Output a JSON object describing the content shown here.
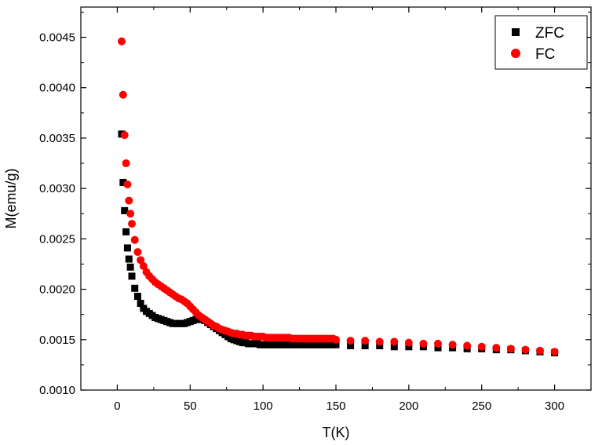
{
  "chart_data": {
    "type": "scatter",
    "title": "",
    "xlabel": "T(K)",
    "ylabel": "M(emu/g)",
    "xlim": [
      -25,
      325
    ],
    "ylim": [
      0.001,
      0.0048
    ],
    "xticks": [
      0,
      50,
      100,
      150,
      200,
      250,
      300
    ],
    "xtick_labels": [
      "0",
      "50",
      "100",
      "150",
      "200",
      "250",
      "300"
    ],
    "yticks": [
      0.001,
      0.0015,
      0.002,
      0.0025,
      0.003,
      0.0035,
      0.004,
      0.0045
    ],
    "ytick_labels": [
      "0.0010",
      "0.0015",
      "0.0020",
      "0.0025",
      "0.0030",
      "0.0035",
      "0.0040",
      "0.0045"
    ],
    "legend_position": "top-right",
    "series": [
      {
        "name": "ZFC",
        "marker": "square",
        "color": "#000000",
        "x": [
          3,
          4,
          5,
          6,
          7,
          8,
          9,
          10,
          12,
          14,
          16,
          18,
          20,
          22,
          24,
          26,
          28,
          30,
          32,
          34,
          36,
          38,
          40,
          42,
          44,
          46,
          48,
          50,
          52,
          54,
          56,
          58,
          60,
          62,
          64,
          66,
          68,
          70,
          72,
          74,
          76,
          78,
          80,
          82,
          84,
          86,
          88,
          90,
          92,
          94,
          96,
          98,
          100,
          102,
          104,
          106,
          108,
          110,
          112,
          114,
          116,
          118,
          120,
          122,
          124,
          126,
          128,
          130,
          132,
          134,
          136,
          138,
          140,
          142,
          144,
          146,
          148,
          150,
          160,
          170,
          180,
          190,
          200,
          210,
          220,
          230,
          240,
          250,
          260,
          270,
          280,
          290,
          300
        ],
        "y": [
          0.00354,
          0.00306,
          0.00278,
          0.00257,
          0.00241,
          0.0023,
          0.00222,
          0.00213,
          0.00201,
          0.00193,
          0.00186,
          0.00181,
          0.00178,
          0.00176,
          0.00174,
          0.00172,
          0.00171,
          0.0017,
          0.00169,
          0.00168,
          0.00167,
          0.00166,
          0.00166,
          0.00166,
          0.00166,
          0.00166,
          0.00167,
          0.00168,
          0.00169,
          0.0017,
          0.0017,
          0.0017,
          0.00169,
          0.00167,
          0.00165,
          0.00163,
          0.00161,
          0.00159,
          0.00157,
          0.00155,
          0.00153,
          0.00151,
          0.0015,
          0.00149,
          0.00148,
          0.00147,
          0.00147,
          0.00146,
          0.00146,
          0.00146,
          0.00146,
          0.00145,
          0.00145,
          0.00145,
          0.00145,
          0.00145,
          0.00145,
          0.00145,
          0.00145,
          0.00145,
          0.00145,
          0.00145,
          0.00145,
          0.00145,
          0.00145,
          0.00145,
          0.00145,
          0.00145,
          0.00145,
          0.00145,
          0.00145,
          0.00145,
          0.00145,
          0.00145,
          0.00145,
          0.00145,
          0.00145,
          0.00145,
          0.00144,
          0.00144,
          0.00144,
          0.00143,
          0.00143,
          0.00143,
          0.00142,
          0.00142,
          0.00141,
          0.00141,
          0.0014,
          0.0014,
          0.00139,
          0.00138,
          0.00137
        ]
      },
      {
        "name": "FC",
        "marker": "circle",
        "color": "#ff0000",
        "x": [
          3,
          4,
          5,
          6,
          7,
          8,
          9,
          10,
          12,
          14,
          16,
          18,
          20,
          22,
          24,
          26,
          28,
          30,
          32,
          34,
          36,
          38,
          40,
          42,
          44,
          46,
          48,
          50,
          52,
          54,
          56,
          58,
          60,
          62,
          64,
          66,
          68,
          70,
          72,
          74,
          76,
          78,
          80,
          82,
          84,
          86,
          88,
          90,
          92,
          94,
          96,
          98,
          100,
          102,
          104,
          106,
          108,
          110,
          112,
          114,
          116,
          118,
          120,
          122,
          124,
          126,
          128,
          130,
          132,
          134,
          136,
          138,
          140,
          142,
          144,
          146,
          148,
          150,
          160,
          170,
          180,
          190,
          200,
          210,
          220,
          230,
          240,
          250,
          260,
          270,
          280,
          290,
          300
        ],
        "y": [
          0.00446,
          0.00393,
          0.00353,
          0.00325,
          0.00304,
          0.00288,
          0.00275,
          0.00265,
          0.00249,
          0.00237,
          0.00229,
          0.00223,
          0.00217,
          0.00213,
          0.0021,
          0.00207,
          0.00205,
          0.00203,
          0.00201,
          0.00199,
          0.00197,
          0.00195,
          0.00193,
          0.00191,
          0.0019,
          0.00188,
          0.00186,
          0.00183,
          0.0018,
          0.00177,
          0.00174,
          0.00172,
          0.0017,
          0.00168,
          0.00166,
          0.00164,
          0.00163,
          0.00161,
          0.0016,
          0.00159,
          0.00158,
          0.00157,
          0.00156,
          0.00156,
          0.00155,
          0.00155,
          0.00154,
          0.00154,
          0.00154,
          0.00153,
          0.00153,
          0.00153,
          0.00153,
          0.00152,
          0.00152,
          0.00152,
          0.00152,
          0.00152,
          0.00152,
          0.00152,
          0.00152,
          0.00152,
          0.00151,
          0.00151,
          0.00151,
          0.00151,
          0.00151,
          0.00151,
          0.00151,
          0.00151,
          0.00151,
          0.00151,
          0.00151,
          0.00151,
          0.00151,
          0.00151,
          0.00151,
          0.0015,
          0.00149,
          0.00149,
          0.00148,
          0.00148,
          0.00147,
          0.00146,
          0.00146,
          0.00145,
          0.00144,
          0.00143,
          0.00142,
          0.00141,
          0.0014,
          0.00139,
          0.00138
        ]
      }
    ]
  }
}
